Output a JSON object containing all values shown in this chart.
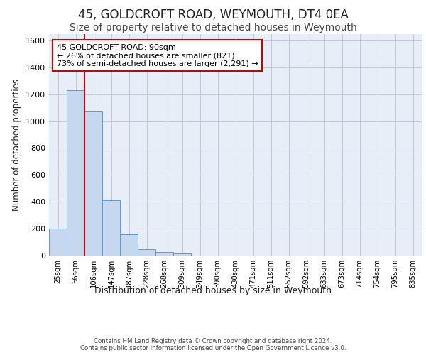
{
  "title": "45, GOLDCROFT ROAD, WEYMOUTH, DT4 0EA",
  "subtitle": "Size of property relative to detached houses in Weymouth",
  "xlabel": "Distribution of detached houses by size in Weymouth",
  "ylabel": "Number of detached properties",
  "footer_line1": "Contains HM Land Registry data © Crown copyright and database right 2024.",
  "footer_line2": "Contains public sector information licensed under the Open Government Licence v3.0.",
  "categories": [
    "25sqm",
    "66sqm",
    "106sqm",
    "147sqm",
    "187sqm",
    "228sqm",
    "268sqm",
    "309sqm",
    "349sqm",
    "390sqm",
    "430sqm",
    "471sqm",
    "511sqm",
    "552sqm",
    "592sqm",
    "633sqm",
    "673sqm",
    "714sqm",
    "754sqm",
    "795sqm",
    "835sqm"
  ],
  "values": [
    200,
    1230,
    1070,
    410,
    160,
    50,
    25,
    15,
    0,
    0,
    0,
    0,
    0,
    0,
    0,
    0,
    0,
    0,
    0,
    0,
    0
  ],
  "bar_color": "#c5d8f0",
  "bar_edge_color": "#5b9bd5",
  "property_line_x": 1.5,
  "property_line_color": "#cc0000",
  "annotation_text": "45 GOLDCROFT ROAD: 90sqm\n← 26% of detached houses are smaller (821)\n73% of semi-detached houses are larger (2,291) →",
  "annotation_box_color": "#cc0000",
  "ylim": [
    0,
    1650
  ],
  "yticks": [
    0,
    200,
    400,
    600,
    800,
    1000,
    1200,
    1400,
    1600
  ],
  "grid_color": "#c0c8d8",
  "background_color": "#e8eef8",
  "title_fontsize": 12,
  "subtitle_fontsize": 10
}
